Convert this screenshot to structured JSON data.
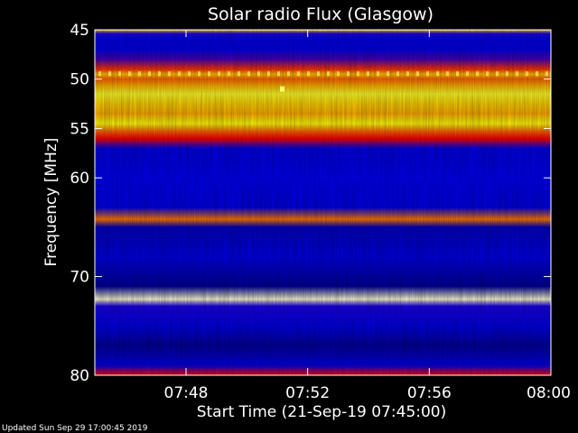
{
  "chart_data": {
    "type": "heatmap",
    "title": "Solar radio Flux (Glasgow)",
    "xlabel": "Start Time (21-Sep-19 07:45:00)",
    "ylabel": "Frequency [MHz]",
    "xlim": [
      "07:45",
      "08:00"
    ],
    "ylim": [
      45,
      80
    ],
    "y_inverted": true,
    "x_ticks": [
      "07:48",
      "07:52",
      "07:56",
      "08:00"
    ],
    "y_ticks": [
      45,
      50,
      55,
      60,
      70,
      80
    ],
    "colormap": [
      "#000000",
      "#000080",
      "#0000ff",
      "#ff0000",
      "#ffa500",
      "#ffff00",
      "#ffffff"
    ],
    "frequency_bands": [
      {
        "freq": 45.0,
        "intensity": 0.75
      },
      {
        "freq": 45.4,
        "intensity": 0.35
      },
      {
        "freq": 46.0,
        "intensity": 0.3
      },
      {
        "freq": 47.0,
        "intensity": 0.3
      },
      {
        "freq": 48.0,
        "intensity": 0.38
      },
      {
        "freq": 49.0,
        "intensity": 0.55
      },
      {
        "freq": 49.5,
        "intensity": 0.72
      },
      {
        "freq": 50.0,
        "intensity": 0.6
      },
      {
        "freq": 50.7,
        "intensity": 0.7
      },
      {
        "freq": 51.5,
        "intensity": 0.86
      },
      {
        "freq": 52.5,
        "intensity": 0.75
      },
      {
        "freq": 53.5,
        "intensity": 0.68
      },
      {
        "freq": 54.5,
        "intensity": 0.84
      },
      {
        "freq": 55.3,
        "intensity": 0.6
      },
      {
        "freq": 56.0,
        "intensity": 0.5
      },
      {
        "freq": 57.0,
        "intensity": 0.3
      },
      {
        "freq": 58.0,
        "intensity": 0.3
      },
      {
        "freq": 60.0,
        "intensity": 0.32
      },
      {
        "freq": 63.0,
        "intensity": 0.3
      },
      {
        "freq": 64.2,
        "intensity": 0.62
      },
      {
        "freq": 65.0,
        "intensity": 0.25
      },
      {
        "freq": 68.0,
        "intensity": 0.3
      },
      {
        "freq": 71.0,
        "intensity": 0.2
      },
      {
        "freq": 72.3,
        "intensity": 0.97
      },
      {
        "freq": 73.0,
        "intensity": 0.35
      },
      {
        "freq": 75.0,
        "intensity": 0.3
      },
      {
        "freq": 77.0,
        "intensity": 0.2
      },
      {
        "freq": 79.0,
        "intensity": 0.3
      },
      {
        "freq": 80.0,
        "intensity": 0.5
      }
    ],
    "footer": "Updated Sun Sep 29 17:00:45 2019"
  }
}
